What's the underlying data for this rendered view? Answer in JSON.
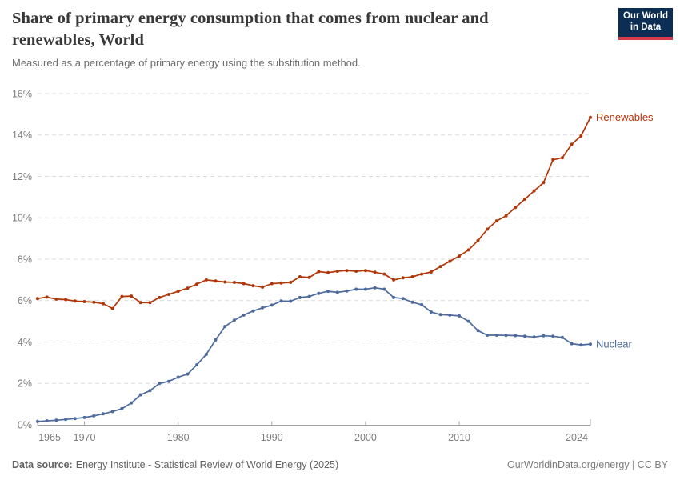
{
  "header": {
    "title": "Share of primary energy consumption that comes from nuclear and renewables, World",
    "subtitle": "Measured as a percentage of primary energy using the substitution method.",
    "logo": {
      "line1": "Our World",
      "line2": "in Data",
      "bg": "#0d2e54",
      "accent": "#d93a4a"
    }
  },
  "chart_data": {
    "type": "line",
    "title": "Share of primary energy consumption that comes from nuclear and renewables, World",
    "subtitle": "Measured as a percentage of primary energy using the substitution method.",
    "xlabel": "",
    "ylabel": "",
    "xlim": [
      1965,
      2024
    ],
    "ylim": [
      0,
      16
    ],
    "yticks": [
      0,
      2,
      4,
      6,
      8,
      10,
      12,
      14,
      16
    ],
    "ytick_suffix": "%",
    "xticks": [
      1965,
      1970,
      1980,
      1990,
      2000,
      2010,
      2024
    ],
    "grid": "horizontal-dashed",
    "legend_position": "end-of-line-labels",
    "x": [
      1965,
      1966,
      1967,
      1968,
      1969,
      1970,
      1971,
      1972,
      1973,
      1974,
      1975,
      1976,
      1977,
      1978,
      1979,
      1980,
      1981,
      1982,
      1983,
      1984,
      1985,
      1986,
      1987,
      1988,
      1989,
      1990,
      1991,
      1992,
      1993,
      1994,
      1995,
      1996,
      1997,
      1998,
      1999,
      2000,
      2001,
      2002,
      2003,
      2004,
      2005,
      2006,
      2007,
      2008,
      2009,
      2010,
      2011,
      2012,
      2013,
      2014,
      2015,
      2016,
      2017,
      2018,
      2019,
      2020,
      2021,
      2022,
      2023,
      2024
    ],
    "series": [
      {
        "name": "Renewables",
        "color": "#b13507",
        "values": [
          6.1,
          6.17,
          6.07,
          6.05,
          5.98,
          5.95,
          5.92,
          5.85,
          5.62,
          6.2,
          6.22,
          5.9,
          5.9,
          6.15,
          6.3,
          6.45,
          6.6,
          6.8,
          7.0,
          6.95,
          6.9,
          6.88,
          6.82,
          6.72,
          6.65,
          6.82,
          6.85,
          6.88,
          7.15,
          7.12,
          7.4,
          7.35,
          7.42,
          7.45,
          7.42,
          7.45,
          7.37,
          7.28,
          7.0,
          7.1,
          7.15,
          7.28,
          7.38,
          7.65,
          7.9,
          8.15,
          8.45,
          8.9,
          9.45,
          9.85,
          10.1,
          10.5,
          10.9,
          11.3,
          11.7,
          12.8,
          12.9,
          13.55,
          13.95,
          14.85
        ]
      },
      {
        "name": "Nuclear",
        "color": "#4c6a9c",
        "values": [
          0.16,
          0.19,
          0.22,
          0.26,
          0.3,
          0.35,
          0.43,
          0.53,
          0.64,
          0.78,
          1.05,
          1.45,
          1.65,
          2.0,
          2.1,
          2.3,
          2.45,
          2.9,
          3.4,
          4.1,
          4.75,
          5.05,
          5.3,
          5.5,
          5.65,
          5.78,
          5.98,
          5.97,
          6.15,
          6.2,
          6.35,
          6.45,
          6.4,
          6.46,
          6.55,
          6.55,
          6.62,
          6.55,
          6.15,
          6.1,
          5.92,
          5.8,
          5.45,
          5.32,
          5.3,
          5.26,
          5.0,
          4.55,
          4.33,
          4.33,
          4.32,
          4.31,
          4.28,
          4.24,
          4.3,
          4.28,
          4.22,
          3.92,
          3.86,
          3.9
        ]
      }
    ]
  },
  "footer": {
    "source_label": "Data source:",
    "source_text": "Energy Institute - Statistical Review of World Energy (2025)",
    "credit": "OurWorldinData.org/energy | CC BY"
  }
}
